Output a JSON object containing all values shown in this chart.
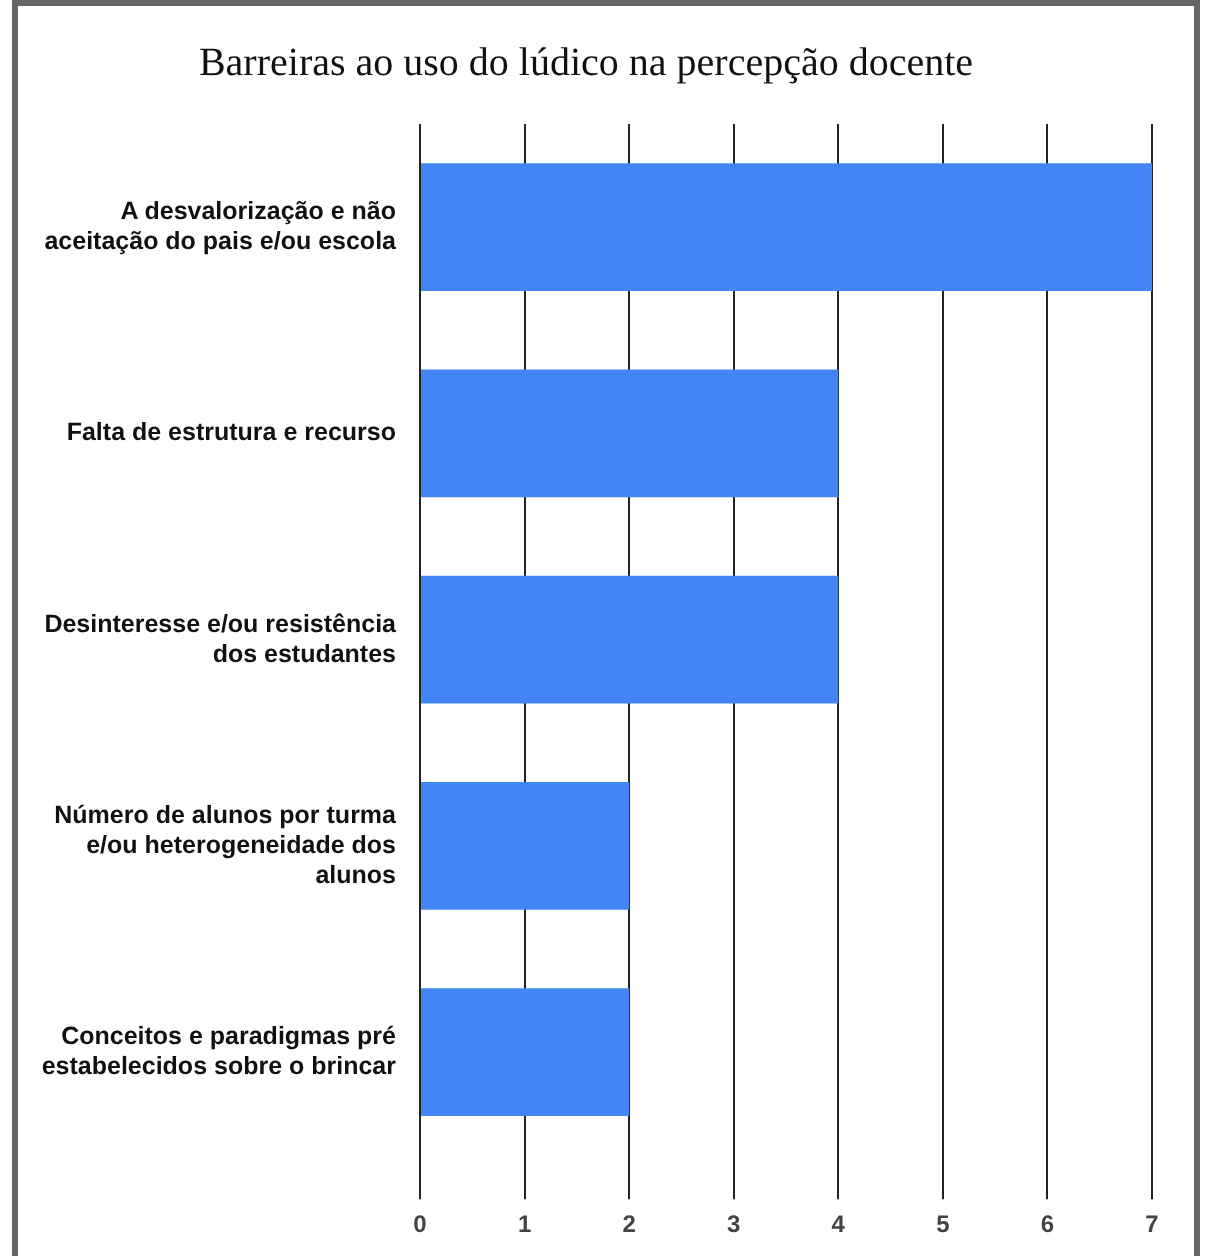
{
  "chart_data": {
    "type": "bar",
    "orientation": "horizontal",
    "title": "Barreiras ao uso do lúdico na percepção docente",
    "categories": [
      "A desvalorização e não aceitação do pais e/ou escola",
      "Falta de estrutura e recurso",
      "Desinteresse e/ou resistência dos estudantes",
      "Número de alunos por turma e/ou heterogeneidade dos alunos",
      "Conceitos e paradigmas pré estabelecidos sobre o brincar"
    ],
    "values": [
      7,
      4,
      4,
      2,
      2
    ],
    "color": "#4285f4",
    "xlim": [
      0,
      7
    ],
    "xticks": [
      0,
      1,
      2,
      3,
      4,
      5,
      6,
      7
    ],
    "grid": "x",
    "legend": false
  }
}
